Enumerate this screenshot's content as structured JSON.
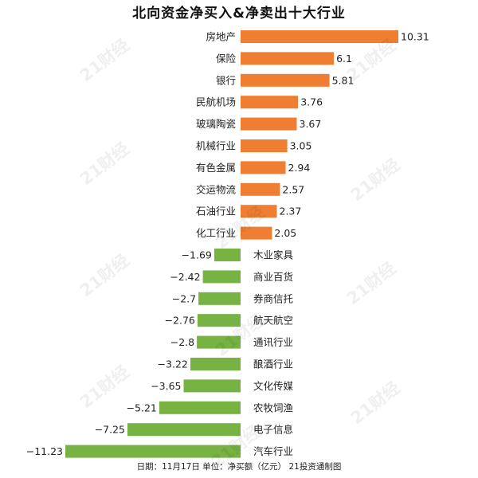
{
  "watermark_text": "21财经",
  "colors": {
    "positive": "#ef7d32",
    "negative": "#77b343",
    "text": "#222222",
    "title": "#111111"
  },
  "chart_data": {
    "type": "bar",
    "orientation": "horizontal",
    "title": "北向资金净买入&净卖出十大行业",
    "footer": "日期：11月17日 单位：净买额（亿元） 21投资通制图",
    "categories": [
      "房地产",
      "保险",
      "银行",
      "民航机场",
      "玻璃陶瓷",
      "机械行业",
      "有色金属",
      "交运物流",
      "石油行业",
      "化工行业",
      "木业家具",
      "商业百货",
      "券商信托",
      "航天航空",
      "通讯行业",
      "酿酒行业",
      "文化传媒",
      "农牧饲渔",
      "电子信息",
      "汽车行业"
    ],
    "values": [
      10.31,
      6.1,
      5.81,
      3.76,
      3.67,
      3.05,
      2.94,
      2.57,
      2.37,
      2.05,
      -1.69,
      -2.42,
      -2.7,
      -2.76,
      -2.8,
      -3.22,
      -3.65,
      -5.21,
      -7.25,
      -11.23
    ],
    "value_labels": [
      "10.31",
      "6.1",
      "5.81",
      "3.76",
      "3.67",
      "3.05",
      "2.94",
      "2.57",
      "2.37",
      "2.05",
      "−1.69",
      "−2.42",
      "−2.7",
      "−2.76",
      "−2.8",
      "−3.22",
      "−3.65",
      "−5.21",
      "−7.25",
      "−11.23"
    ],
    "xlim": [
      -11.23,
      10.31
    ],
    "grid": false,
    "legend": "none"
  }
}
